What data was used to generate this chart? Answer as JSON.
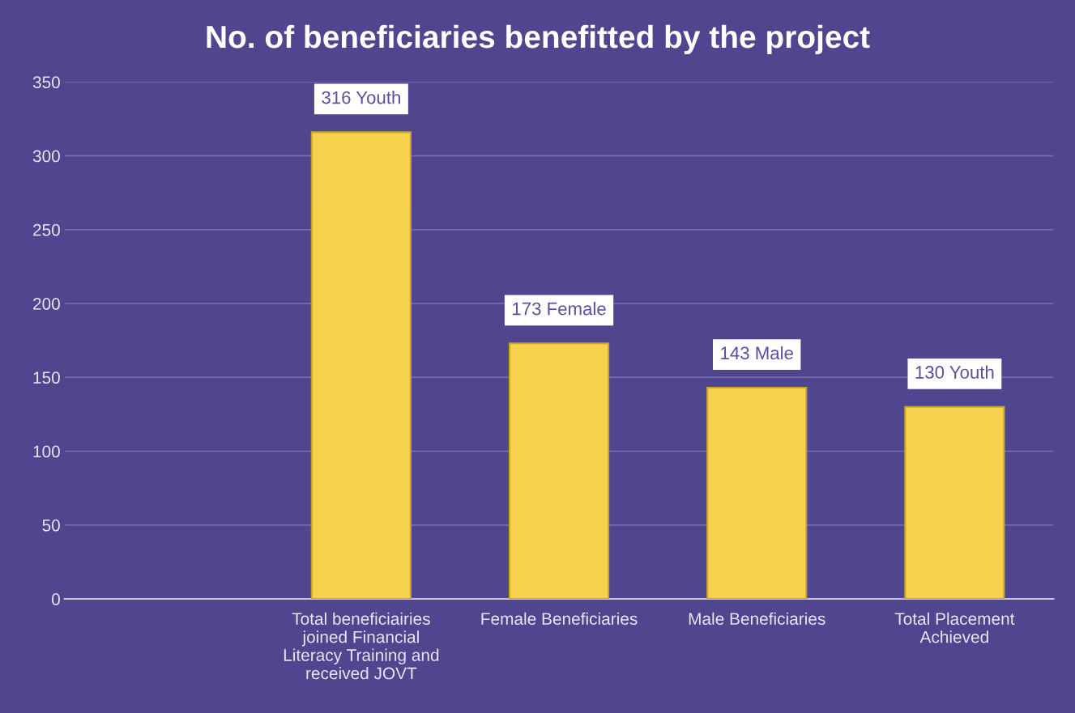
{
  "chart_data": {
    "type": "bar",
    "title": "No. of beneficiaries benefitted by the project",
    "categories": [
      null,
      "Total beneficiairies\njoined Financial\nLiteracy Training and\nreceived JOVT",
      "Female Beneficiaries",
      "Male Beneficiaries",
      "Total Placement\nAchieved"
    ],
    "values": [
      null,
      316,
      173,
      143,
      130
    ],
    "value_labels": [
      null,
      "316 Youth",
      "173 Female",
      "143 Male",
      "130 Youth"
    ],
    "color": "#f7d24c",
    "ylim": [
      0,
      350
    ],
    "yticks": [
      0,
      50,
      100,
      150,
      200,
      250,
      300,
      350
    ],
    "grid": "y",
    "legend": false
  }
}
